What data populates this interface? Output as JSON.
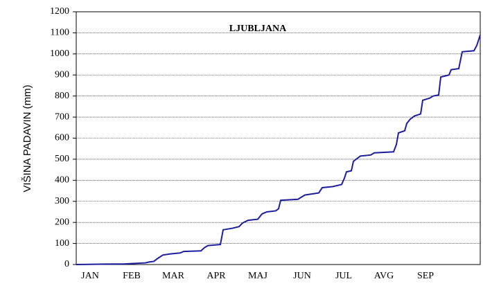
{
  "chart_data": {
    "type": "line",
    "title": "LJUBLJANA",
    "y_label": "VIŠINA PADAVIN (mm)",
    "x": [
      0,
      20,
      35,
      50,
      52.5,
      56,
      59,
      62.5,
      67.5,
      75,
      77.5,
      90,
      92.5,
      95,
      104,
      106,
      112.5,
      117.5,
      120,
      124,
      131,
      134,
      137.5,
      144,
      146,
      147.5,
      160,
      162.5,
      165,
      175,
      177.5,
      185,
      191.5,
      193.5,
      195,
      198.5,
      200,
      205,
      212.5,
      215,
      229,
      231,
      232.5,
      237,
      238.5,
      241,
      244,
      248.5,
      250,
      255,
      257.5,
      261.5,
      263,
      269,
      270.5,
      276,
      278.5,
      287,
      289,
      291.5
    ],
    "series": [
      {
        "name": "LJUBLJANA",
        "color": "#1c1ca0",
        "values": [
          0,
          2,
          3,
          8,
          12,
          15,
          30,
          45,
          50,
          55,
          62,
          65,
          80,
          90,
          95,
          165,
          172,
          180,
          197,
          210,
          215,
          240,
          250,
          255,
          265,
          305,
          310,
          320,
          330,
          340,
          365,
          370,
          380,
          410,
          440,
          445,
          490,
          515,
          520,
          530,
          535,
          570,
          625,
          635,
          670,
          690,
          705,
          715,
          780,
          790,
          800,
          805,
          890,
          900,
          925,
          930,
          1010,
          1015,
          1040,
          1090
        ]
      }
    ],
    "xlim": [
      0,
      291.5
    ],
    "xticks": [
      {
        "value": 10,
        "label": "JAN"
      },
      {
        "value": 40,
        "label": "FEB"
      },
      {
        "value": 70,
        "label": "MAR"
      },
      {
        "value": 101,
        "label": "APR"
      },
      {
        "value": 131,
        "label": "MAJ"
      },
      {
        "value": 163,
        "label": "JUN"
      },
      {
        "value": 193,
        "label": "JUL"
      },
      {
        "value": 222,
        "label": "AVG"
      },
      {
        "value": 252,
        "label": "SEP"
      }
    ],
    "ylim": [
      0,
      1200
    ],
    "yticks": [
      0,
      100,
      200,
      300,
      400,
      500,
      600,
      700,
      800,
      900,
      1000,
      1100,
      1200
    ],
    "grid": true
  }
}
